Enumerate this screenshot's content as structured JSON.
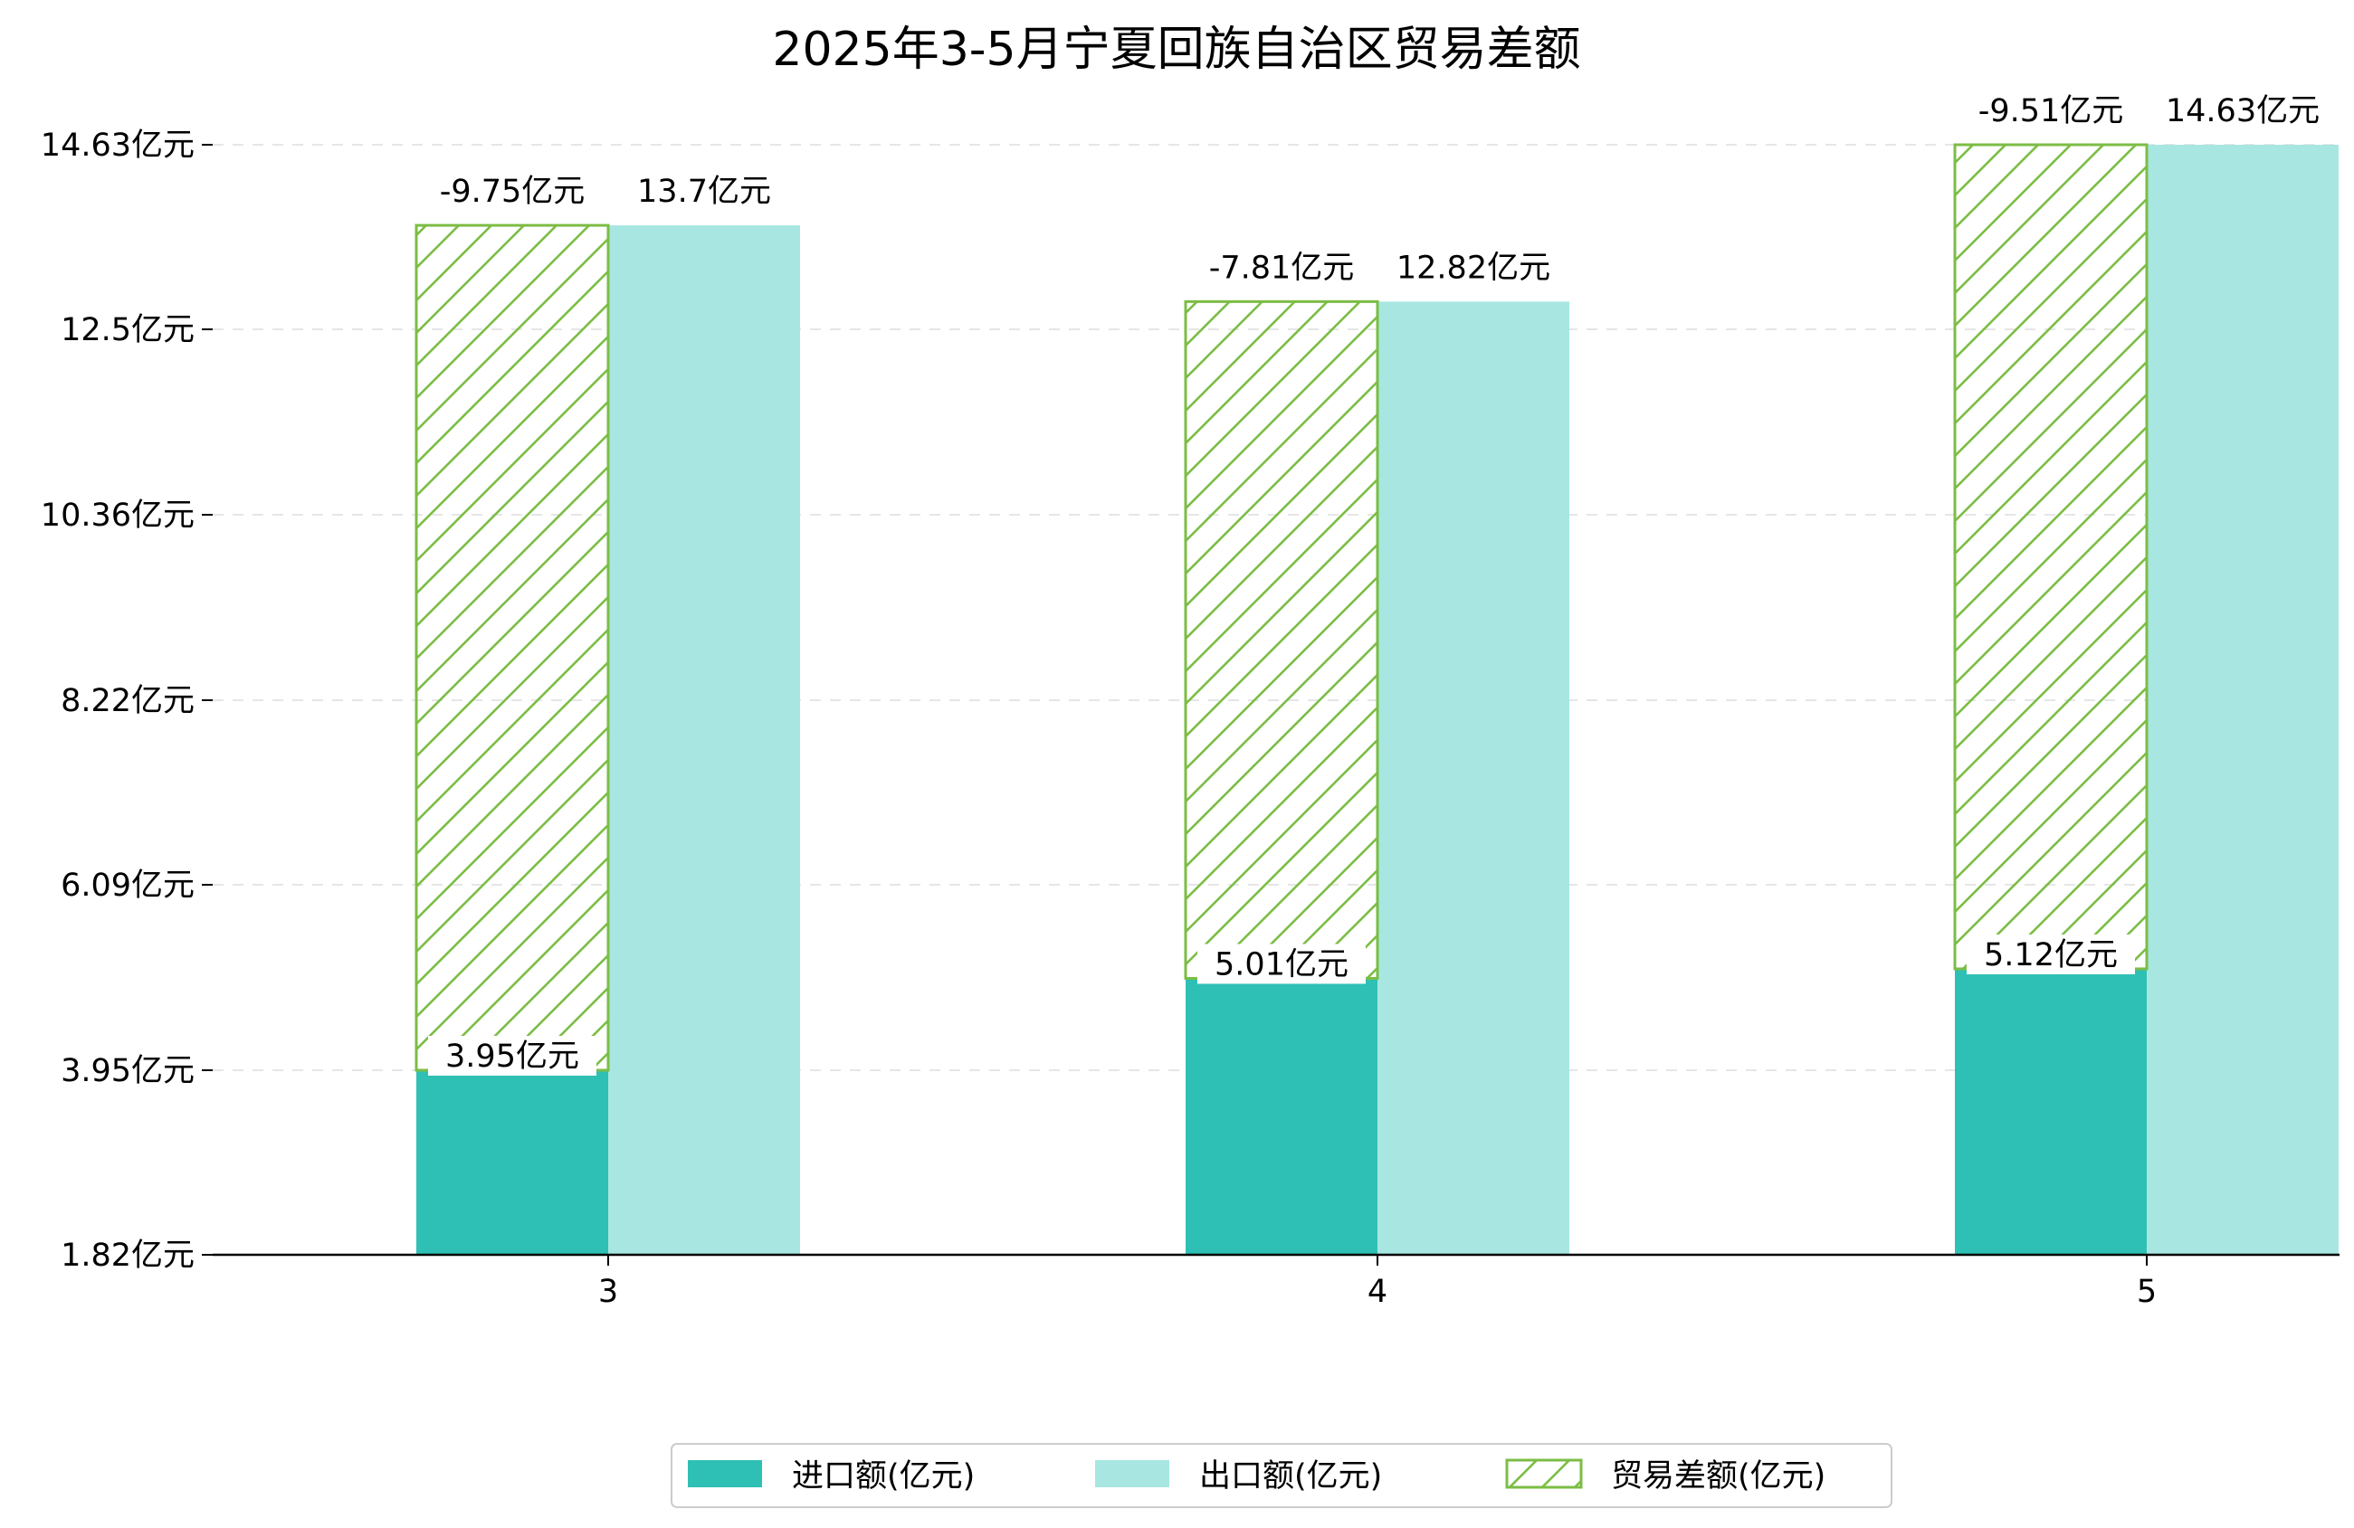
{
  "chart_data": {
    "type": "bar",
    "title": "2025年3-5月宁夏回族自治区贸易差额",
    "categories": [
      "3",
      "4",
      "5"
    ],
    "ylim": [
      1.82,
      14.63
    ],
    "yticks": [
      "1.82亿元",
      "3.95亿元",
      "6.09亿元",
      "8.22亿元",
      "10.36亿元",
      "12.5亿元",
      "14.63亿元"
    ],
    "ytick_values": [
      1.82,
      3.95,
      6.09,
      8.22,
      10.36,
      12.5,
      14.63
    ],
    "grid": "horizontal dashed",
    "legend_position": "bottom-center",
    "series": [
      {
        "name": "进口额(亿元)",
        "values": [
          3.95,
          5.01,
          5.12
        ],
        "labels": [
          "3.95亿元",
          "5.01亿元",
          "5.12亿元"
        ],
        "color": "#2ec0b4"
      },
      {
        "name": "出口额(亿元)",
        "values": [
          13.7,
          12.82,
          14.63
        ],
        "labels": [
          "13.7亿元",
          "12.82亿元",
          "14.63亿元"
        ],
        "color": "#a8e6e1"
      },
      {
        "name": "贸易差额(亿元)",
        "values": [
          -9.75,
          -7.81,
          -9.51
        ],
        "labels": [
          "-9.75亿元",
          "-7.81亿元",
          "-9.51亿元"
        ],
        "color": "#7cbd45",
        "pattern": "hatch"
      }
    ]
  }
}
